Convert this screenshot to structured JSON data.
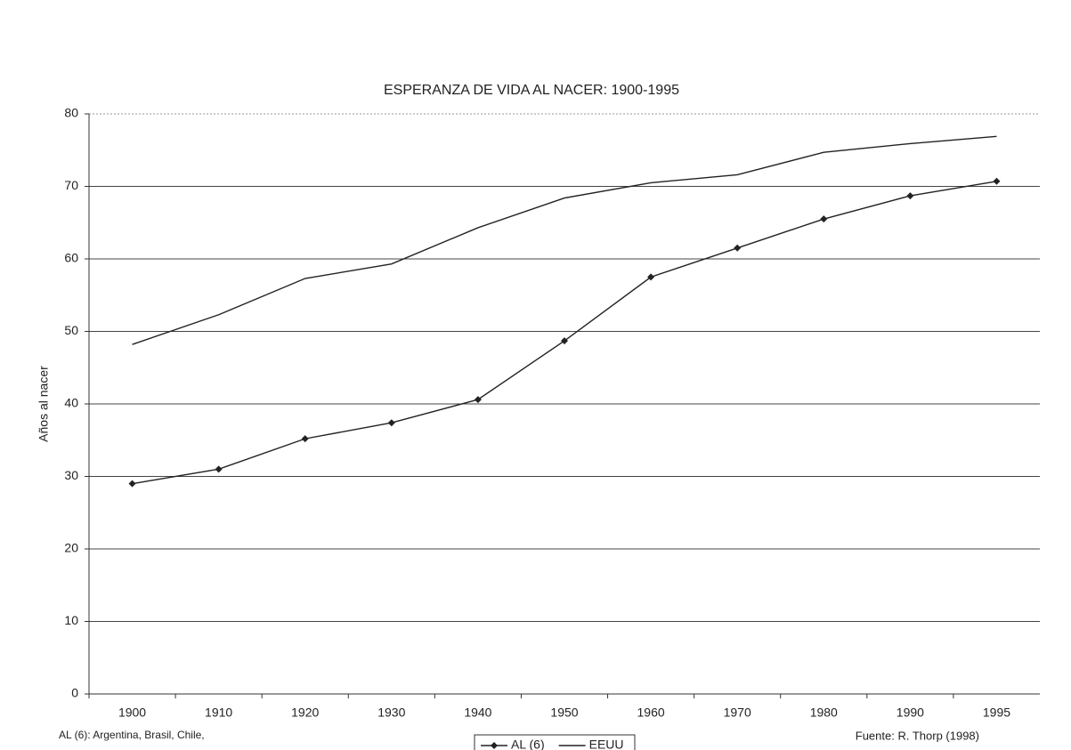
{
  "chart_data": {
    "type": "line",
    "title": "ESPERANZA DE VIDA AL NACER: 1900-1995",
    "y_label": "Años al nacer",
    "categories": [
      "1900",
      "1910",
      "1920",
      "1930",
      "1940",
      "1950",
      "1960",
      "1970",
      "1980",
      "1990",
      "1995"
    ],
    "series": [
      {
        "name": "AL (6)",
        "color": "#222222",
        "marker": "diamond",
        "values": [
          29,
          31,
          35.2,
          37.4,
          40.6,
          48.7,
          57.5,
          61.5,
          65.5,
          68.7,
          70.7
        ]
      },
      {
        "name": "EEUU",
        "color": "#222222",
        "marker": "none",
        "values": [
          48.2,
          52.3,
          57.3,
          59.3,
          64.3,
          68.4,
          70.5,
          71.6,
          74.7,
          75.9,
          76.9
        ]
      }
    ],
    "ylim": [
      0,
      80
    ],
    "yticks": [
      0,
      10,
      20,
      30,
      40,
      50,
      60,
      70,
      80
    ],
    "grid": true,
    "legend": "bottom",
    "note": "AL (6): Argentina, Brasil, Chile,",
    "source": "Fuente: R. Thorp  (1998)"
  }
}
